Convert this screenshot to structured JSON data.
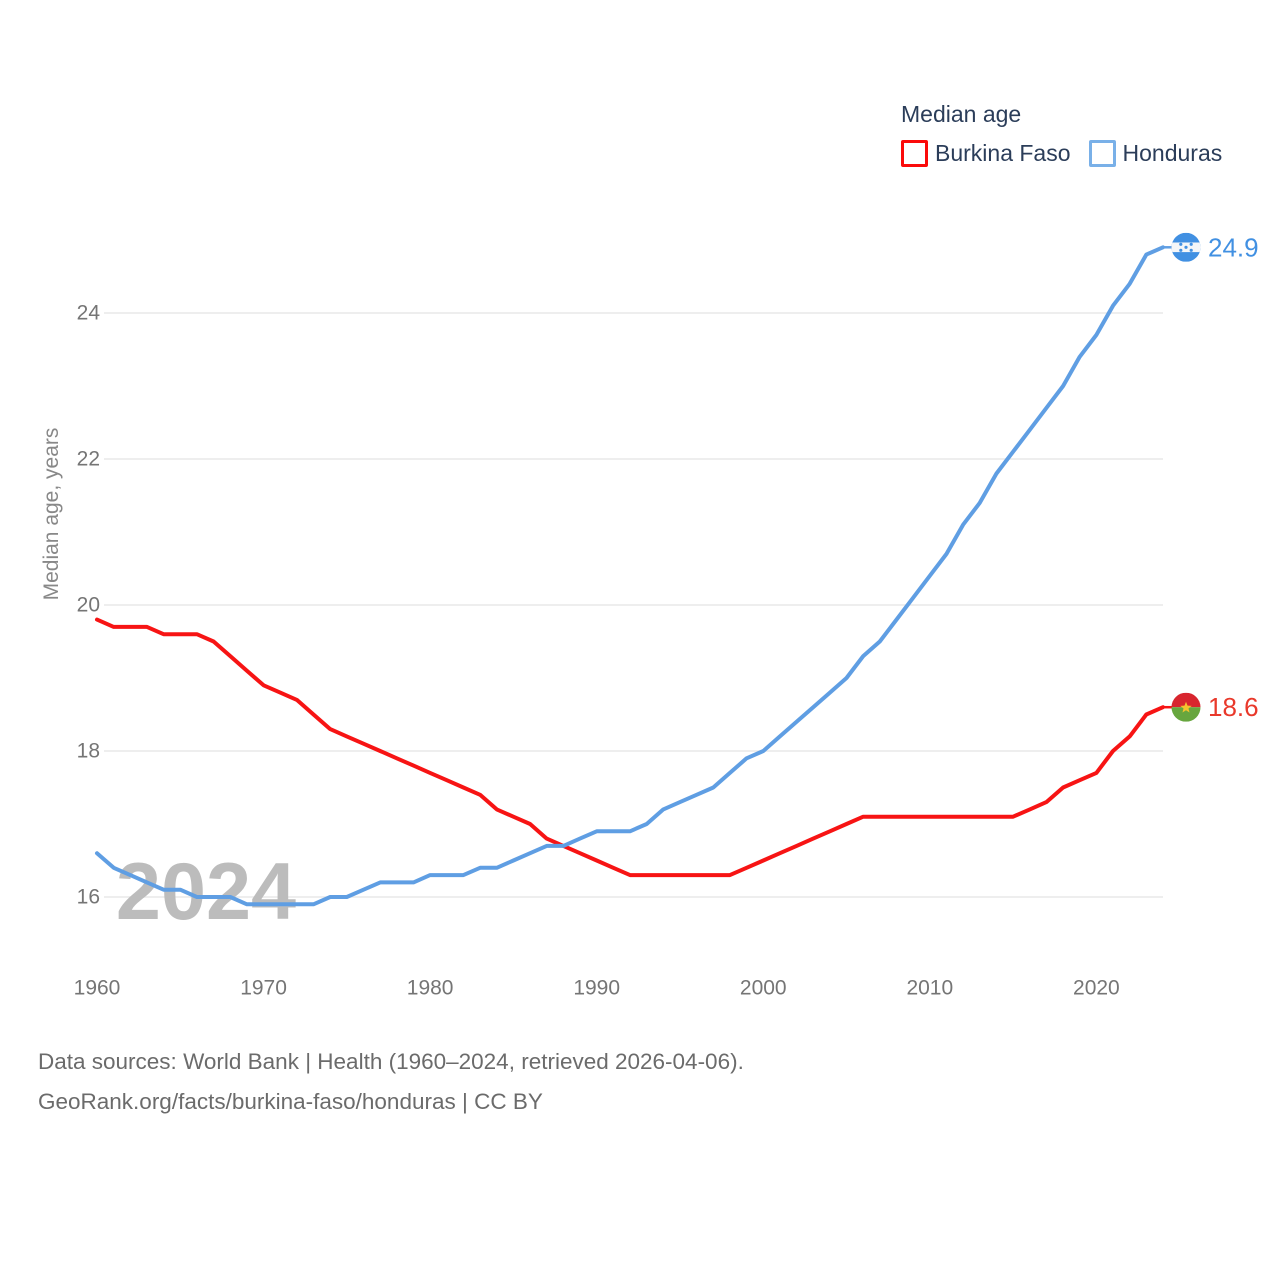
{
  "legend": {
    "title": "Median age",
    "items": [
      {
        "label": "Burkina Faso",
        "swatch_color": "#fb0a0a"
      },
      {
        "label": "Honduras",
        "swatch_color": "#79b0e8"
      }
    ]
  },
  "watermark": "2024",
  "footer": {
    "line1": "Data sources: World Bank | Health (1960–2024, retrieved 2026-04-06).",
    "line2": "GeoRank.org/facts/burkina-faso/honduras | CC BY"
  },
  "chart_data": {
    "type": "line",
    "title": "Median age",
    "ylabel": "Median age, years",
    "xlabel": "",
    "grid": "horizontal",
    "legend_position": "top-right",
    "ylim": [
      15.3,
      25.5
    ],
    "xlim": [
      1960,
      2024
    ],
    "y_ticks": [
      16,
      18,
      20,
      22,
      24
    ],
    "x_ticks": [
      1960,
      1970,
      1980,
      1990,
      2000,
      2010,
      2020
    ],
    "x": [
      1960,
      1961,
      1962,
      1963,
      1964,
      1965,
      1966,
      1967,
      1968,
      1969,
      1970,
      1971,
      1972,
      1973,
      1974,
      1975,
      1976,
      1977,
      1978,
      1979,
      1980,
      1981,
      1982,
      1983,
      1984,
      1985,
      1986,
      1987,
      1988,
      1989,
      1990,
      1991,
      1992,
      1993,
      1994,
      1995,
      1996,
      1997,
      1998,
      1999,
      2000,
      2001,
      2002,
      2003,
      2004,
      2005,
      2006,
      2007,
      2008,
      2009,
      2010,
      2011,
      2012,
      2013,
      2014,
      2015,
      2016,
      2017,
      2018,
      2019,
      2020,
      2021,
      2022,
      2023,
      2024
    ],
    "series": [
      {
        "name": "Burkina Faso",
        "color": "#f71414",
        "label_color": "#e9392b",
        "end_label": "18.6",
        "flag": {
          "name": "burkina-faso-flag",
          "colors": {
            "top": "#d8252e",
            "bottom": "#67a63e",
            "star": "#f4c32e"
          }
        },
        "values": [
          19.8,
          19.7,
          19.7,
          19.7,
          19.6,
          19.6,
          19.6,
          19.5,
          19.3,
          19.1,
          18.9,
          18.8,
          18.7,
          18.5,
          18.3,
          18.2,
          18.1,
          18.0,
          17.9,
          17.8,
          17.7,
          17.6,
          17.5,
          17.4,
          17.2,
          17.1,
          17.0,
          16.8,
          16.7,
          16.6,
          16.5,
          16.4,
          16.3,
          16.3,
          16.3,
          16.3,
          16.3,
          16.3,
          16.3,
          16.4,
          16.5,
          16.6,
          16.7,
          16.8,
          16.9,
          17.0,
          17.1,
          17.1,
          17.1,
          17.1,
          17.1,
          17.1,
          17.1,
          17.1,
          17.1,
          17.1,
          17.2,
          17.3,
          17.5,
          17.6,
          17.7,
          18.0,
          18.2,
          18.5,
          18.6
        ]
      },
      {
        "name": "Honduras",
        "color": "#5f9ee3",
        "label_color": "#4190e2",
        "end_label": "24.9",
        "flag": {
          "name": "honduras-flag",
          "colors": {
            "band": "#4190e2",
            "field": "#f4f6f8",
            "stars": "#4190e2"
          }
        },
        "values": [
          16.6,
          16.4,
          16.3,
          16.2,
          16.1,
          16.1,
          16.0,
          16.0,
          16.0,
          15.9,
          15.9,
          15.9,
          15.9,
          15.9,
          16.0,
          16.0,
          16.1,
          16.2,
          16.2,
          16.2,
          16.3,
          16.3,
          16.3,
          16.4,
          16.4,
          16.5,
          16.6,
          16.7,
          16.7,
          16.8,
          16.9,
          16.9,
          16.9,
          17.0,
          17.2,
          17.3,
          17.4,
          17.5,
          17.7,
          17.9,
          18.0,
          18.2,
          18.4,
          18.6,
          18.8,
          19.0,
          19.3,
          19.5,
          19.8,
          20.1,
          20.4,
          20.7,
          21.1,
          21.4,
          21.8,
          22.1,
          22.4,
          22.7,
          23.0,
          23.4,
          23.7,
          24.1,
          24.4,
          24.8,
          24.9
        ]
      }
    ],
    "style": {
      "grid_color": "#e8e8e8",
      "tick_color": "#757575",
      "watermark_color": "#bcbcbc",
      "legend_text_color": "#2b3d59"
    }
  }
}
